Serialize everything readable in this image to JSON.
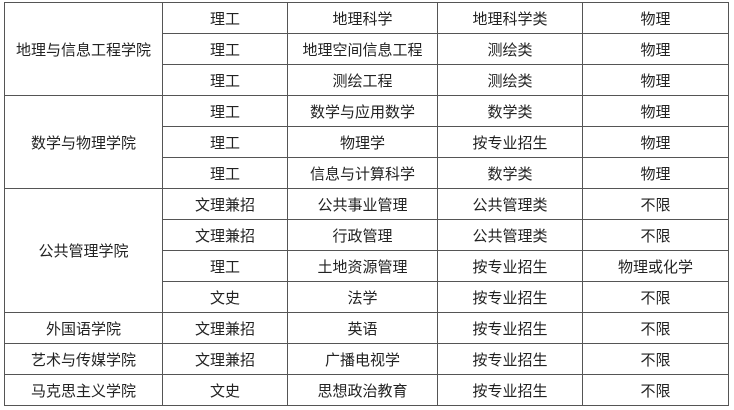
{
  "table": {
    "groups": [
      {
        "college": "地理与信息工程学院",
        "rows": [
          [
            "理工",
            "地理科学",
            "地理科学类",
            "物理"
          ],
          [
            "理工",
            "地理空间信息工程",
            "测绘类",
            "物理"
          ],
          [
            "理工",
            "测绘工程",
            "测绘类",
            "物理"
          ]
        ]
      },
      {
        "college": "数学与物理学院",
        "rows": [
          [
            "理工",
            "数学与应用数学",
            "数学类",
            "物理"
          ],
          [
            "理工",
            "物理学",
            "按专业招生",
            "物理"
          ],
          [
            "理工",
            "信息与计算科学",
            "数学类",
            "物理"
          ]
        ]
      },
      {
        "college": "公共管理学院",
        "rows": [
          [
            "文理兼招",
            "公共事业管理",
            "公共管理类",
            "不限"
          ],
          [
            "文理兼招",
            "行政管理",
            "公共管理类",
            "不限"
          ],
          [
            "理工",
            "土地资源管理",
            "按专业招生",
            "物理或化学"
          ],
          [
            "文史",
            "法学",
            "按专业招生",
            "不限"
          ]
        ]
      },
      {
        "college": "外国语学院",
        "rows": [
          [
            "文理兼招",
            "英语",
            "按专业招生",
            "不限"
          ]
        ]
      },
      {
        "college": "艺术与传媒学院",
        "rows": [
          [
            "文理兼招",
            "广播电视学",
            "按专业招生",
            "不限"
          ]
        ]
      },
      {
        "college": "马克思主义学院",
        "rows": [
          [
            "文史",
            "思想政治教育",
            "按专业招生",
            "不限"
          ]
        ]
      }
    ]
  }
}
